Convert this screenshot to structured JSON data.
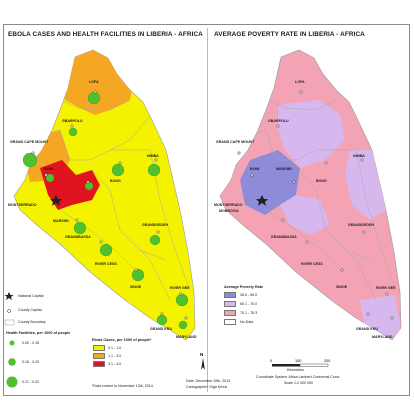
{
  "left_map": {
    "title": "EBOLA CASES AND HEALTH FACILITIES IN LIBERIA - AFRICA",
    "counties": [
      "LOFA",
      "GBARPOLU",
      "GRAND CAPE MOUNT",
      "BOMI",
      "MONTSERRADO",
      "MARGIBI",
      "BONG",
      "NIMBA",
      "GRANDBASSA",
      "RIVER CESS",
      "GRANDGEDEH",
      "SINOE",
      "RIVER GEE",
      "GRAND KRU",
      "MARYLAND"
    ],
    "legend": {
      "national_capital": "National Capital",
      "county_capital": "County Capital",
      "county_boundary": "County Boundary",
      "facilities_title": "Health Facilities, per 1000 of people",
      "facilities": [
        "0.00 - 0.15",
        "0.16 - 0.20",
        "0.21 - 0.32"
      ],
      "cases_title": "Ebola Cases, per 1000 of people*",
      "cases": [
        {
          "label": "0.1 - 1.0",
          "color": "#f5f200"
        },
        {
          "label": "1.1 - 3.0",
          "color": "#f5a623"
        },
        {
          "label": "3.1 - 4.0",
          "color": "#e0141e"
        }
      ],
      "footnote": "*Data current to November 13th, 2014"
    },
    "north_label": "N"
  },
  "right_map": {
    "title": "AVERAGE POVERTY RATE IN LIBERIA - AFRICA",
    "counties": [
      "LOFA",
      "GBARPOLU",
      "GRAND CAPE MOUNT",
      "BOMI",
      "MARGIBI",
      "MONTSERRADO",
      "MONROVIA",
      "BONG",
      "NIMBA",
      "GRANDBASSA",
      "RIVER CESS",
      "GRANDGEDEH",
      "SINOE",
      "RIVER GEE",
      "GRAND KRU",
      "MARYLAND"
    ],
    "legend": {
      "title": "Average Poverty Rate",
      "classes": [
        {
          "label": "38.5 - 65.0",
          "color": "#8e8cd8"
        },
        {
          "label": "65.1 - 70.0",
          "color": "#d6b8ee"
        },
        {
          "label": "70.1 - 76.3",
          "color": "#f4a3b4"
        },
        {
          "label": "No Data",
          "color": "#ffffff"
        }
      ]
    },
    "scale": {
      "ticks": [
        "0",
        "100",
        "200"
      ],
      "unit": "Kilometres"
    },
    "coord_system": "Coordinate System: Africa Lambert Conformal Conic",
    "scale_text": "Scale 1:2 000 000"
  },
  "credits": {
    "date": "Date: December 10th, 2014",
    "cartographer": "Cartographer: Olga Krhuk"
  },
  "colors": {
    "ocean": "#ffffff",
    "boundary": "#9a9a9a",
    "facility": "#4fc12e",
    "capital": "#222222"
  }
}
